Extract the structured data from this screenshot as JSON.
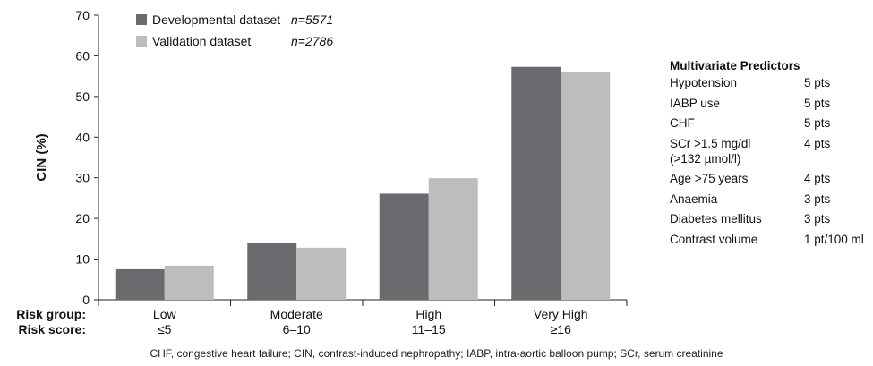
{
  "chart_data": {
    "type": "bar",
    "ylabel": "CIN (%)",
    "ylim": [
      0,
      70
    ],
    "yticks": [
      0,
      10,
      20,
      30,
      40,
      50,
      60,
      70
    ],
    "row_labels": {
      "group": "Risk group:",
      "score": "Risk score:"
    },
    "categories": [
      {
        "group": "Low",
        "score": "≤5"
      },
      {
        "group": "Moderate",
        "score": "6–10"
      },
      {
        "group": "High",
        "score": "11–15"
      },
      {
        "group": "Very High",
        "score": "≥16"
      }
    ],
    "series": [
      {
        "name": "Developmental dataset",
        "n": "n=5571",
        "color": "#6b6b6f",
        "values": [
          7.5,
          14.0,
          26.1,
          57.3
        ]
      },
      {
        "name": "Validation dataset",
        "n": "n=2786",
        "color": "#bdbdc0",
        "values": [
          8.4,
          12.8,
          29.9,
          56.0
        ]
      }
    ],
    "legend_position": "top-left",
    "grid": false
  },
  "predictors": {
    "title": "Multivariate Predictors",
    "items": [
      {
        "name": "Hypotension",
        "points": "5 pts"
      },
      {
        "name": "IABP use",
        "points": "5 pts"
      },
      {
        "name": "CHF",
        "points": "5 pts"
      },
      {
        "name": "SCr >1.5 mg/dl\n(>132 µmol/l)",
        "points": "4 pts"
      },
      {
        "name": "Age >75 years",
        "points": "4 pts"
      },
      {
        "name": "Anaemia",
        "points": "3 pts"
      },
      {
        "name": "Diabetes mellitus",
        "points": "3 pts"
      },
      {
        "name": "Contrast volume",
        "points": "1 pt/100 ml"
      }
    ]
  },
  "footnote": "CHF, congestive heart failure; CIN, contrast-induced nephropathy; IABP, intra-aortic balloon pump; SCr, serum creatinine"
}
